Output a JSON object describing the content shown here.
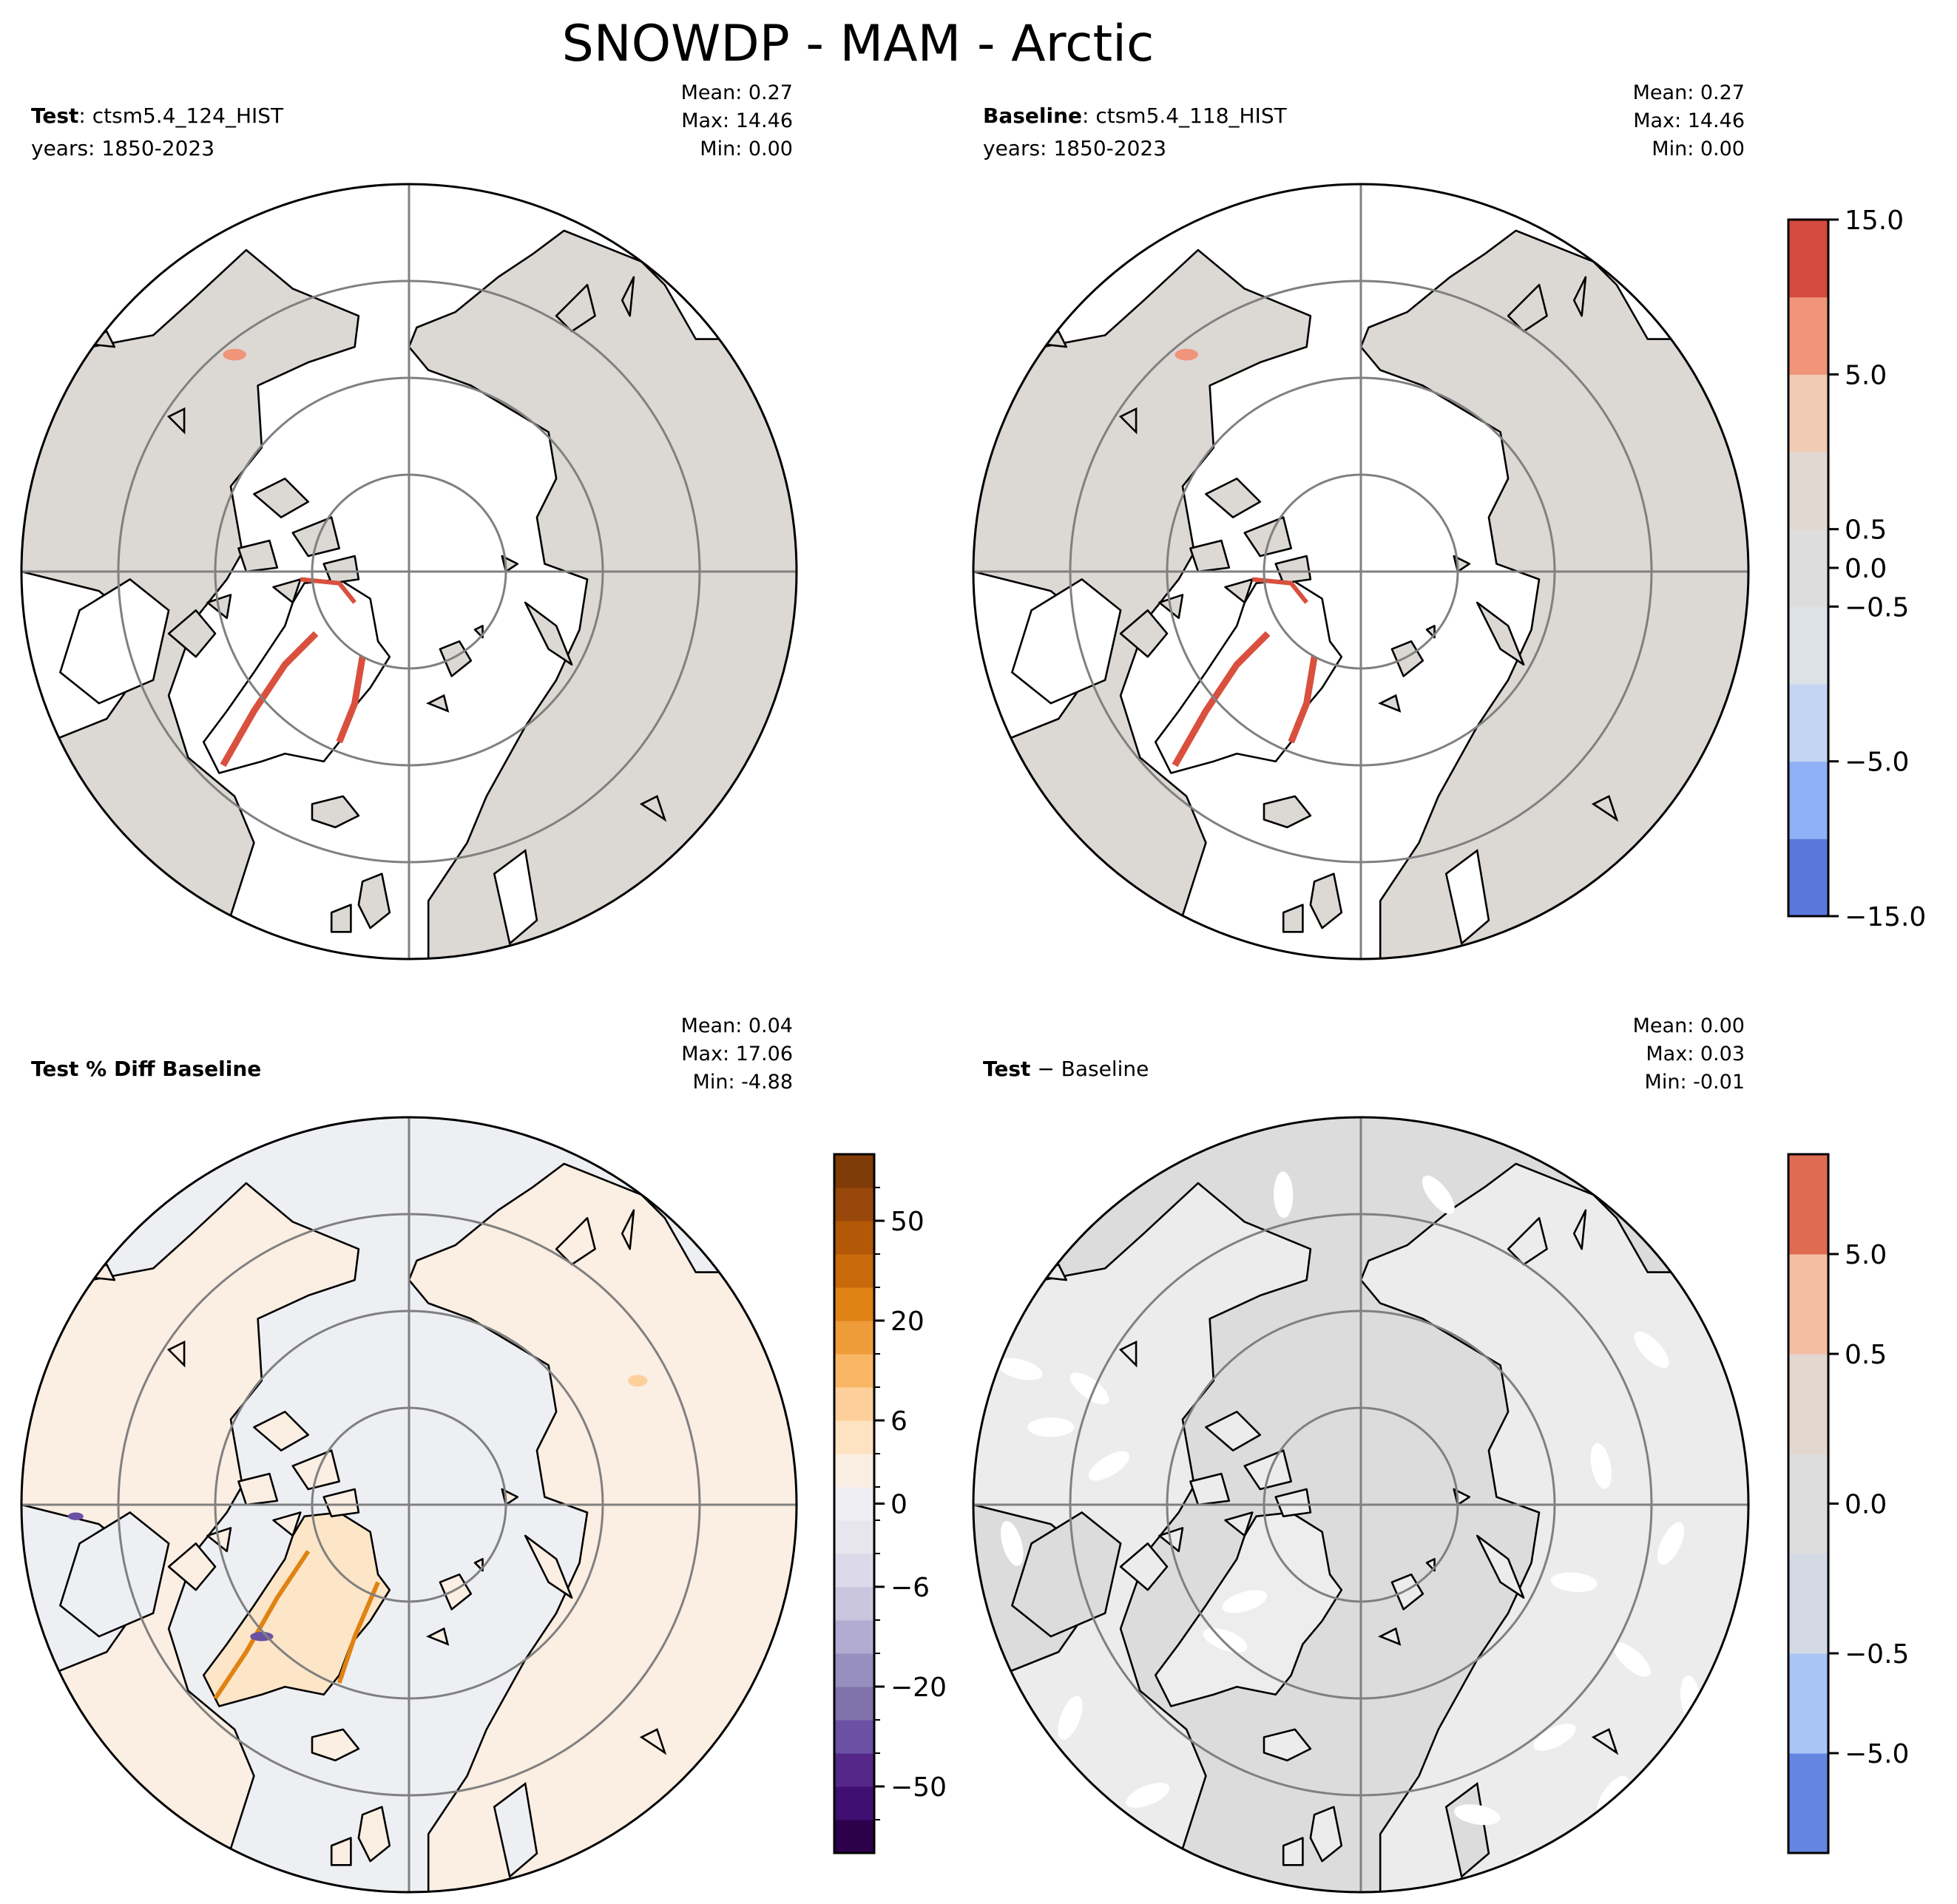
{
  "title": "SNOWDP - MAM - Arctic",
  "panels": [
    {
      "id": "test",
      "label_bold": "Test",
      "label_rest": ": ctsm5.4_124_HIST",
      "years": "years: 1850-2023",
      "stats": {
        "mean": "Mean:  0.27",
        "max": "Max: 14.46",
        "min": "Min:  0.00"
      },
      "fill": "#dcd8d4",
      "ocean": "#ffffff",
      "greenland_fill": "#ffffff"
    },
    {
      "id": "baseline",
      "label_bold": "Baseline",
      "label_rest": ": ctsm5.4_118_HIST",
      "years": "years: 1850-2023",
      "stats": {
        "mean": "Mean:  0.27",
        "max": "Max: 14.46",
        "min": "Min:  0.00"
      },
      "fill": "#dcd8d4",
      "ocean": "#ffffff",
      "greenland_fill": "#ffffff"
    },
    {
      "id": "pctdiff",
      "label_bold": "Test % Diff Baseline",
      "label_rest": "",
      "years": "",
      "stats": {
        "mean": "Mean:  0.04",
        "max": "Max: 17.06",
        "min": "Min: -4.88"
      },
      "fill": "#fbeee2",
      "ocean": "#eeeff3",
      "greenland_fill": "#fde6c8"
    },
    {
      "id": "diff",
      "label_bold": "Test",
      "label_rest": " − Baseline",
      "years": "",
      "stats": {
        "mean": "Mean:  0.00",
        "max": "Max:  0.03",
        "min": "Min: -0.01"
      },
      "fill": "#ececec",
      "ocean": "#dcdcdc",
      "greenland_fill": "#ededed"
    }
  ],
  "colorbars": [
    {
      "id": "top",
      "colors": [
        "#5a78dc",
        "#8fb0f6",
        "#c4d5f3",
        "#dde2e8",
        "#dddddd",
        "#e2d8d2",
        "#f2cbb5",
        "#f0957a",
        "#d44a3f"
      ],
      "ticks": [
        "−15.0",
        "−5.0",
        "−0.5",
        "0.0",
        "0.5",
        "5.0",
        "15.0"
      ]
    },
    {
      "id": "pct",
      "colors": [
        "#2d004b",
        "#3f0f72",
        "#542788",
        "#6a51a3",
        "#8073ac",
        "#978fbf",
        "#b2abd2",
        "#cbc6df",
        "#dcdaea",
        "#e7e6ef",
        "#efeff3",
        "#faeee2",
        "#fde3c2",
        "#fdd09b",
        "#f9b766",
        "#ee9b3a",
        "#e08214",
        "#c8690c",
        "#b35806",
        "#98480a",
        "#7f3b08"
      ],
      "ticks": [
        "−50",
        "−20",
        "−6",
        "0",
        "6",
        "20",
        "50"
      ]
    },
    {
      "id": "diff",
      "colors": [
        "#6485e2",
        "#a9c5f7",
        "#d3dae6",
        "#dddddd",
        "#e3d7d0",
        "#f5bea4",
        "#de6b52"
      ],
      "ticks": [
        "−5.0",
        "−0.5",
        "0.0",
        "0.5",
        "5.0"
      ]
    }
  ],
  "colors": {
    "coast": "#000000",
    "grid": "#808080",
    "greenland_edge": "#d9503e",
    "accent_orange": "#e08214",
    "accent_purple": "#6a51a3"
  }
}
